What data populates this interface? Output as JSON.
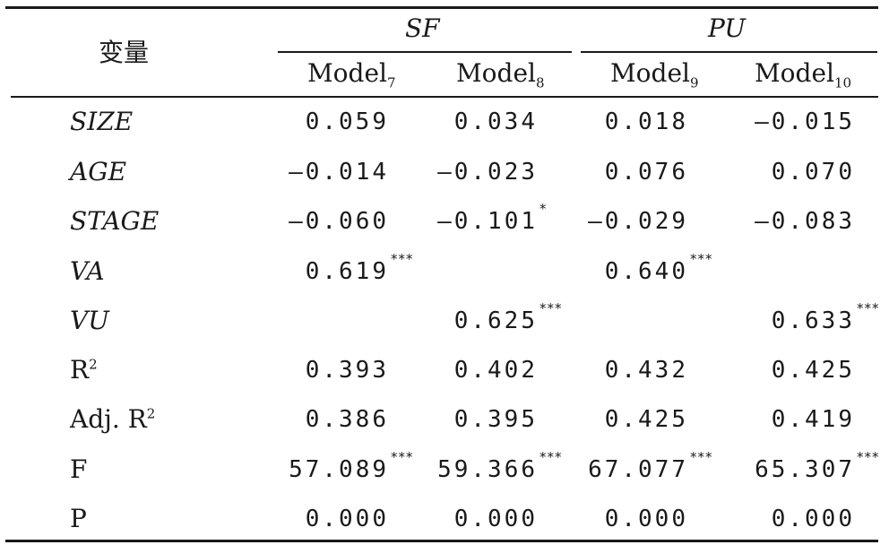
{
  "table": {
    "corner_label": "变量",
    "groups": [
      "SF",
      "PU"
    ],
    "models": [
      {
        "name": "Model",
        "sub": "7"
      },
      {
        "name": "Model",
        "sub": "8"
      },
      {
        "name": "Model",
        "sub": "9"
      },
      {
        "name": "Model",
        "sub": "10"
      }
    ],
    "rows": [
      {
        "label": "SIZE",
        "italic": true,
        "cells": [
          {
            "v": "0.059",
            "s": ""
          },
          {
            "v": "0.034",
            "s": ""
          },
          {
            "v": "0.018",
            "s": ""
          },
          {
            "v": "—0.015",
            "s": ""
          }
        ]
      },
      {
        "label": "AGE",
        "italic": true,
        "cells": [
          {
            "v": "—0.014",
            "s": ""
          },
          {
            "v": "—0.023",
            "s": ""
          },
          {
            "v": "0.076",
            "s": ""
          },
          {
            "v": "0.070",
            "s": ""
          }
        ]
      },
      {
        "label": "STAGE",
        "italic": true,
        "cells": [
          {
            "v": "—0.060",
            "s": ""
          },
          {
            "v": "—0.101",
            "s": "*"
          },
          {
            "v": "—0.029",
            "s": ""
          },
          {
            "v": "—0.083",
            "s": ""
          }
        ]
      },
      {
        "label": "VA",
        "italic": true,
        "cells": [
          {
            "v": "0.619",
            "s": "***"
          },
          {
            "v": "",
            "s": ""
          },
          {
            "v": "0.640",
            "s": "***"
          },
          {
            "v": "",
            "s": ""
          }
        ]
      },
      {
        "label": "VU",
        "italic": true,
        "cells": [
          {
            "v": "",
            "s": ""
          },
          {
            "v": "0.625",
            "s": "***"
          },
          {
            "v": "",
            "s": ""
          },
          {
            "v": "0.633",
            "s": "***"
          }
        ]
      },
      {
        "label": "R",
        "sup": "2",
        "italic": false,
        "cells": [
          {
            "v": "0.393",
            "s": ""
          },
          {
            "v": "0.402",
            "s": ""
          },
          {
            "v": "0.432",
            "s": ""
          },
          {
            "v": "0.425",
            "s": ""
          }
        ]
      },
      {
        "label": "Adj. R",
        "sup": "2",
        "italic": false,
        "cells": [
          {
            "v": "0.386",
            "s": ""
          },
          {
            "v": "0.395",
            "s": ""
          },
          {
            "v": "0.425",
            "s": ""
          },
          {
            "v": "0.419",
            "s": ""
          }
        ]
      },
      {
        "label": "F",
        "italic": false,
        "cells": [
          {
            "v": "57.089",
            "s": "***"
          },
          {
            "v": "59.366",
            "s": "***"
          },
          {
            "v": "67.077",
            "s": "***"
          },
          {
            "v": "65.307",
            "s": "***"
          }
        ]
      },
      {
        "label": "P",
        "italic": false,
        "cells": [
          {
            "v": "0.000",
            "s": ""
          },
          {
            "v": "0.000",
            "s": ""
          },
          {
            "v": "0.000",
            "s": ""
          },
          {
            "v": "0.000",
            "s": ""
          }
        ]
      }
    ]
  }
}
